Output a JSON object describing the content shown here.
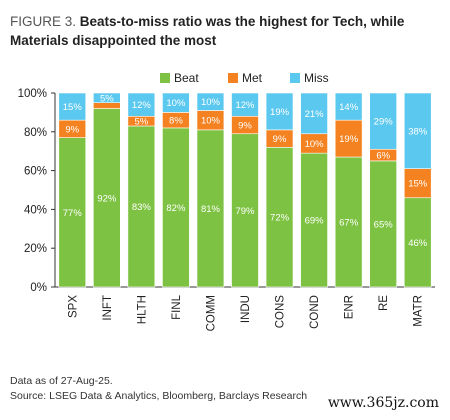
{
  "figure_label": "FIGURE 3.",
  "title_text": "Beats-to-miss ratio was the highest for Tech, while Materials disappointed the most",
  "footnote": "Data as of 27-Aug-25.",
  "source": "Source: LSEG Data & Analytics, Bloomberg, Barclays Research",
  "watermark": "www.365jz.com",
  "chart_data": {
    "type": "bar",
    "stacked": true,
    "categories": [
      "SPX",
      "INFT",
      "HLTH",
      "FINL",
      "COMM",
      "INDU",
      "CONS",
      "COND",
      "ENR",
      "RE",
      "MATR"
    ],
    "series": [
      {
        "name": "Beat",
        "color": "#7dc242",
        "values": [
          77,
          92,
          83,
          82,
          81,
          79,
          72,
          69,
          67,
          65,
          46
        ]
      },
      {
        "name": "Met",
        "color": "#f58220",
        "values": [
          9,
          3,
          5,
          8,
          10,
          9,
          9,
          10,
          19,
          6,
          15
        ]
      },
      {
        "name": "Miss",
        "color": "#5bc8ef",
        "values": [
          15,
          5,
          12,
          10,
          10,
          12,
          19,
          21,
          14,
          29,
          38
        ]
      }
    ],
    "data_labels": [
      [
        "77%",
        "92%",
        "83%",
        "82%",
        "81%",
        "79%",
        "72%",
        "69%",
        "67%",
        "65%",
        "46%"
      ],
      [
        "9%",
        "",
        "5%",
        "8%",
        "10%",
        "9%",
        "9%",
        "10%",
        "19%",
        "6%",
        "15%"
      ],
      [
        "15%",
        "5%",
        "12%",
        "10%",
        "10%",
        "12%",
        "19%",
        "21%",
        "14%",
        "29%",
        "38%"
      ]
    ],
    "ylim": [
      0,
      100
    ],
    "yticks": [
      "0%",
      "20%",
      "40%",
      "60%",
      "80%",
      "100%"
    ],
    "ytick_values": [
      0,
      20,
      40,
      60,
      80,
      100
    ],
    "legend_position": "top-center",
    "grid": false
  }
}
